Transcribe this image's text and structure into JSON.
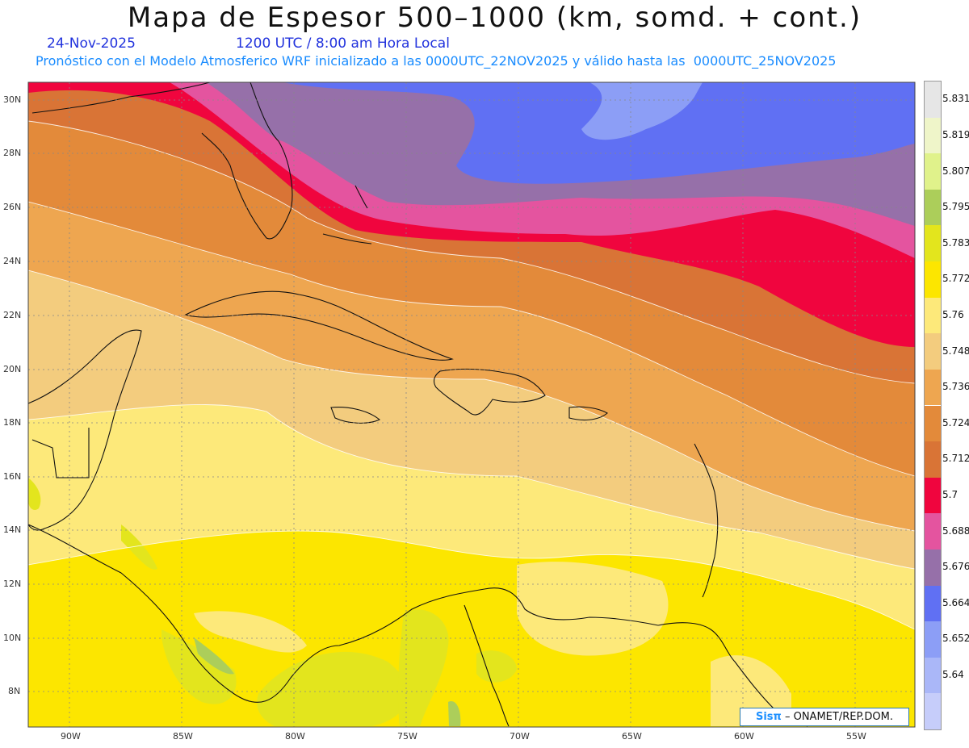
{
  "title": "Mapa de Espesor 500–1000 (km, somd. + cont.)",
  "date": "24-Nov-2025",
  "time": "1200 UTC / 8:00 am Hora Local",
  "subtitle": "Pronóstico con el Modelo Atmosferico WRF inicializado a las 0000UTC_22NOV2025 y válido hasta las  0000UTC_25NOV2025",
  "credit": {
    "logo": "Sisπ",
    "text": "– ONAMET/REP.DOM."
  },
  "legend": [
    {
      "label": "",
      "color": "#c6cdfa"
    },
    {
      "label": "5.64",
      "color": "#aab7f8"
    },
    {
      "label": "5.652",
      "color": "#8c9ef6"
    },
    {
      "label": "5.664",
      "color": "#6070f3"
    },
    {
      "label": "5.676",
      "color": "#9670a9"
    },
    {
      "label": "5.688",
      "color": "#e4549f"
    },
    {
      "label": "5.7",
      "color": "#f0053e"
    },
    {
      "label": "5.712",
      "color": "#d97436"
    },
    {
      "label": "5.724",
      "color": "#e38a3a"
    },
    {
      "label": "5.736",
      "color": "#eea650"
    },
    {
      "label": "5.748",
      "color": "#f3cc7e"
    },
    {
      "label": "5.76",
      "color": "#fde97a"
    },
    {
      "label": "5.772",
      "color": "#fce600"
    },
    {
      "label": "5.783",
      "color": "#e3e51d"
    },
    {
      "label": "5.795",
      "color": "#acce5a"
    },
    {
      "label": "5.807",
      "color": "#e0f28b"
    },
    {
      "label": "5.819",
      "color": "#eff5c9"
    },
    {
      "label": "5.831",
      "color": "#e6e6e6"
    }
  ],
  "lat_labels": [
    "30N",
    "28N",
    "26N",
    "24N",
    "22N",
    "20N",
    "18N",
    "16N",
    "14N",
    "12N",
    "10N",
    "8N"
  ],
  "lon_labels": [
    "90W",
    "85W",
    "80W",
    "75W",
    "70W",
    "65W",
    "60W",
    "55W"
  ]
}
